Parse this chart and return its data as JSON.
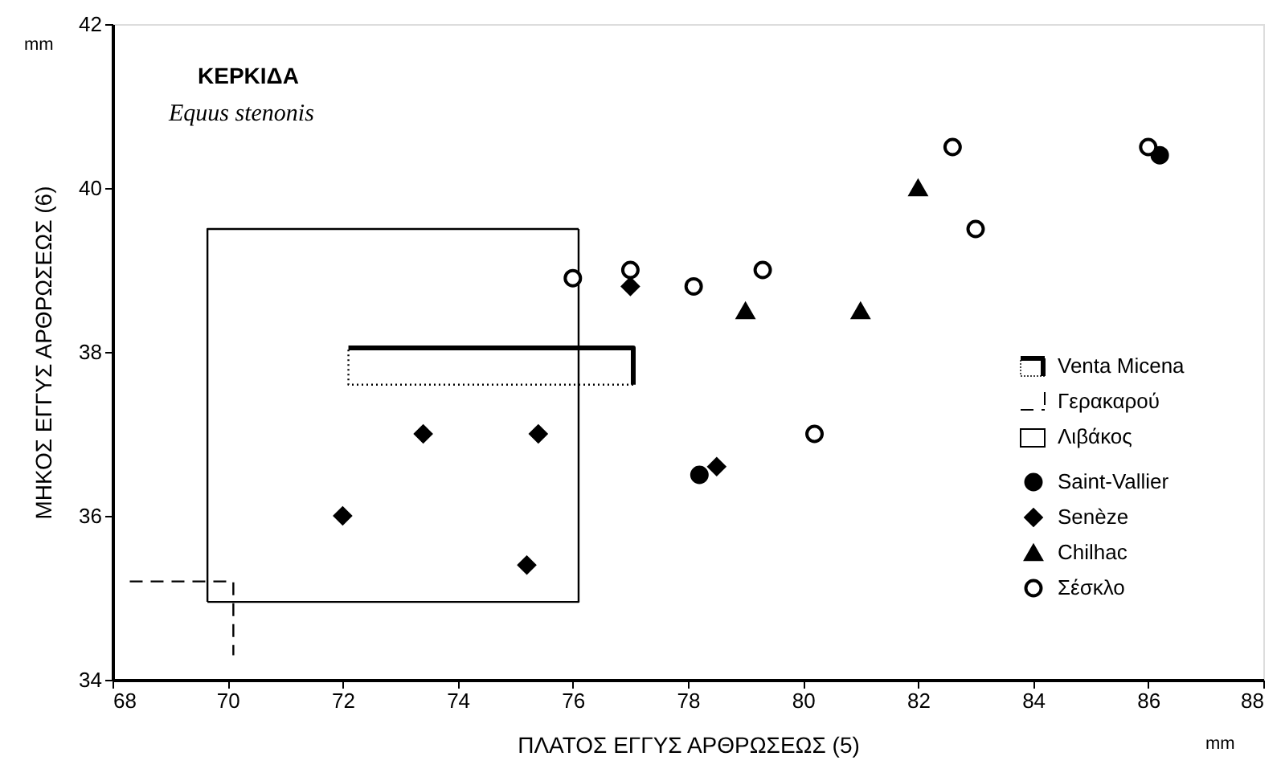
{
  "chart_data": {
    "type": "scatter",
    "title": "ΚΕΡΚΙΔΑ",
    "subtitle": "Equus stenonis",
    "xlabel": "ΠΛΑΤΟΣ ΕΓΓΥΣ ΑΡΘΡΩΣΕΩΣ  (5)",
    "ylabel": "ΜΗΚΟΣ ΕΓΓΥΣ ΑΡΘΡΩΣΕΩΣ  (6)",
    "annotations": [
      "mm",
      "mm"
    ],
    "xlim": [
      68,
      88
    ],
    "xticks": [
      68,
      70,
      72,
      74,
      76,
      78,
      80,
      82,
      84,
      86,
      88
    ],
    "ylim": [
      34,
      42
    ],
    "yticks": [
      34,
      36,
      38,
      40,
      42
    ],
    "grid": false,
    "legend": "right",
    "series": [
      {
        "name": "Venta Micena",
        "type": "line",
        "line_style": "solid",
        "color": "#000000",
        "x": [
          72.1,
          77.05,
          77.05
        ],
        "values": [
          38.05,
          38.05,
          37.6
        ]
      },
      {
        "type": "line",
        "line_style": "dotted",
        "color": "#000000",
        "x": [
          77.05,
          72.1,
          72.1
        ],
        "values": [
          37.6,
          37.6,
          38.05
        ]
      },
      {
        "name": "Γερακαρού",
        "type": "line",
        "line_style": "dashed",
        "color": "#000000",
        "x": [
          68.3,
          70.1,
          70.1
        ],
        "values": [
          35.2,
          35.2,
          34.3
        ]
      },
      {
        "name": "Λιβάκος",
        "type": "line",
        "line_style": "solid",
        "color": "#000000",
        "x": [
          69.65,
          69.65,
          76.1
        ],
        "values": [
          34.95,
          39.5,
          39.5
        ]
      },
      {
        "type": "line",
        "line_style": "solid",
        "color": "#000000",
        "x": [
          69.65,
          76.1,
          76.1
        ],
        "values": [
          34.95,
          34.95,
          39.5
        ]
      },
      {
        "name": "Saint-Vallier",
        "marker": "circle",
        "color": "#000000",
        "x": [
          78.2,
          86.2
        ],
        "values": [
          36.5,
          40.4
        ]
      },
      {
        "name": "Senèze",
        "marker": "diamond",
        "color": "#000000",
        "x": [
          72.0,
          73.4,
          75.4,
          75.2,
          78.5,
          77.0
        ],
        "values": [
          36.0,
          37.0,
          37.0,
          35.4,
          36.6,
          38.8
        ]
      },
      {
        "name": "Chilhac",
        "marker": "triangle",
        "color": "#000000",
        "x": [
          79.0,
          81.0,
          82.0
        ],
        "values": [
          38.5,
          38.5,
          40.0
        ]
      },
      {
        "name": "Σέσκλο",
        "marker": "circle",
        "color": "#ffffff",
        "x": [
          76.0,
          77.0,
          78.1,
          79.3,
          80.2,
          82.6,
          83.0,
          86.0
        ],
        "values": [
          38.9,
          39.0,
          38.8,
          39.0,
          37.0,
          40.5,
          39.5,
          40.5
        ]
      }
    ]
  }
}
